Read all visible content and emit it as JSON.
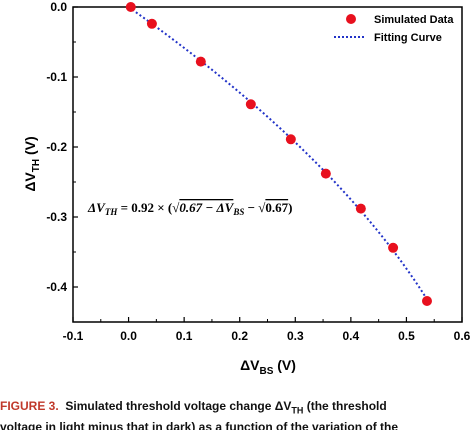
{
  "chart_data": {
    "type": "scatter",
    "xlabel": "ΔV",
    "xlabel_sub": "BS",
    "xlabel_unit": " (V)",
    "ylabel": "ΔV",
    "ylabel_sub": "TH",
    "ylabel_unit": " (V)",
    "xlim": [
      -0.1,
      0.6
    ],
    "ylim": [
      -0.45,
      0.0
    ],
    "xticks": [
      -0.1,
      0.0,
      0.1,
      0.2,
      0.3,
      0.4,
      0.5,
      0.6
    ],
    "xtick_labels": [
      "-0.1",
      "0.0",
      "0.1",
      "0.2",
      "0.3",
      "0.4",
      "0.5",
      "0.6"
    ],
    "yticks": [
      0.0,
      -0.1,
      -0.2,
      -0.3,
      -0.4
    ],
    "ytick_labels": [
      "0.0",
      "-0.1",
      "-0.2",
      "-0.3",
      "-0.4"
    ],
    "grid": false,
    "legend_position": "top-right",
    "series": [
      {
        "name": "Simulated Data",
        "kind": "scatter",
        "color": "#e8101e",
        "x": [
          0.004,
          0.042,
          0.13,
          0.22,
          0.292,
          0.355,
          0.418,
          0.476,
          0.537
        ],
        "y": [
          0.0,
          -0.024,
          -0.078,
          -0.139,
          -0.189,
          -0.238,
          -0.288,
          -0.344,
          -0.42
        ]
      },
      {
        "name": "Fitting Curve",
        "kind": "line",
        "style": "dotted",
        "color": "#2233c8",
        "equation_coefficients": {
          "a": 0.92,
          "b": 0.67
        }
      }
    ],
    "annotation": {
      "lhs": "ΔV",
      "lhs_sub": "TH",
      "rhs_prefix": " = 0.92 × (√",
      "rhs_radicand1": "0.67 − ΔV",
      "rhs_radicand1_sub": "BS",
      "rhs_minus": " − √",
      "rhs_radicand2": "0.67",
      "rhs_close": ")"
    }
  },
  "caption": {
    "label": "FIGURE 3.",
    "line1": "Simulated threshold voltage change ΔV",
    "line1_sub": "TH",
    "line1_rest": " (the threshold",
    "line2": "voltage in light minus that in dark) as a function of the variation of the"
  }
}
